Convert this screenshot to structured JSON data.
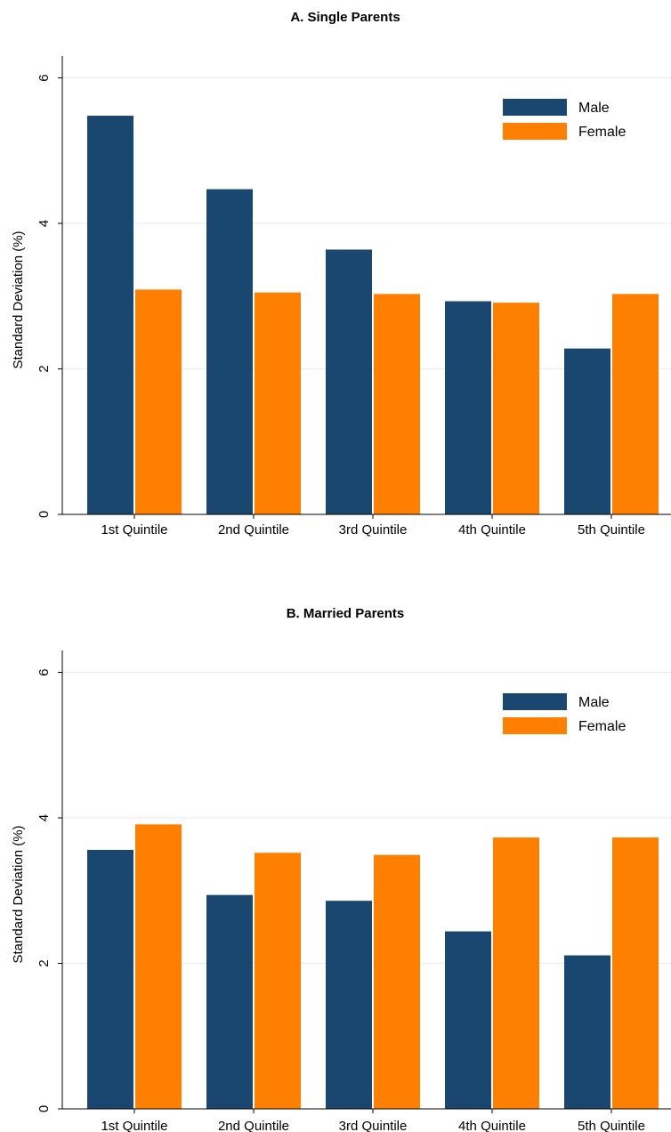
{
  "chart_data": [
    {
      "type": "bar",
      "title": "A. Single Parents",
      "ylabel": "Standard Deviation (%)",
      "xlabel": "",
      "ylim": [
        0,
        6.3
      ],
      "yticks": [
        "0",
        "2",
        "4",
        "6"
      ],
      "grid": true,
      "legend_position": "top-right",
      "categories": [
        "1st Quintile",
        "2nd Quintile",
        "3rd Quintile",
        "4th Quintile",
        "5th Quintile"
      ],
      "series": [
        {
          "name": "Male",
          "color": "#1a476f",
          "values": [
            5.48,
            4.47,
            3.64,
            2.93,
            2.28
          ]
        },
        {
          "name": "Female",
          "color": "#ff7f00",
          "values": [
            3.09,
            3.05,
            3.03,
            2.91,
            3.03
          ]
        }
      ]
    },
    {
      "type": "bar",
      "title": "B. Married Parents",
      "ylabel": "Standard Deviation (%)",
      "xlabel": "",
      "ylim": [
        0,
        6.3
      ],
      "yticks": [
        "0",
        "2",
        "4",
        "6"
      ],
      "grid": true,
      "legend_position": "top-right",
      "categories": [
        "1st Quintile",
        "2nd Quintile",
        "3rd Quintile",
        "4th Quintile",
        "5th Quintile"
      ],
      "series": [
        {
          "name": "Male",
          "color": "#1a476f",
          "values": [
            3.56,
            2.94,
            2.86,
            2.44,
            2.11
          ]
        },
        {
          "name": "Female",
          "color": "#ff7f00",
          "values": [
            3.91,
            3.52,
            3.49,
            3.73,
            3.73
          ]
        }
      ]
    }
  ]
}
